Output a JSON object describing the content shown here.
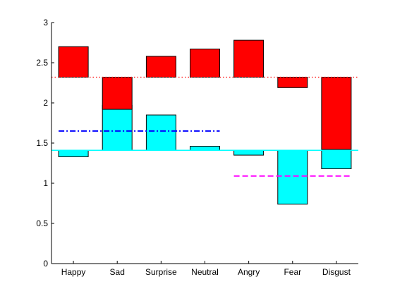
{
  "chart_data": {
    "type": "bar",
    "categories": [
      "Happy",
      "Sad",
      "Surprise",
      "Neutral",
      "Angry",
      "Fear",
      "Disgust"
    ],
    "ylim": [
      0,
      3
    ],
    "yticks": [
      "0",
      "0.5",
      "1",
      "1.5",
      "2",
      "2.5",
      "3"
    ],
    "grid": false,
    "series": [
      {
        "color": "#00ffff",
        "baseline": 1.41,
        "values": [
          1.33,
          1.97,
          1.85,
          1.46,
          1.35,
          0.74,
          1.18
        ]
      },
      {
        "color": "#ff0000",
        "baseline": 2.32,
        "values": [
          2.7,
          1.92,
          2.58,
          2.67,
          2.78,
          2.19,
          1.42
        ]
      }
    ],
    "reference_lines": [
      {
        "y": 2.32,
        "x_range": "full",
        "style": "dotted",
        "color": "#ff0000"
      },
      {
        "y": 1.41,
        "x_range": "full",
        "style": "solid",
        "color": "#00ffff"
      },
      {
        "y": 1.65,
        "x_range": [
          "Happy",
          "Neutral"
        ],
        "style": "dash-dot",
        "color": "#0000ff"
      },
      {
        "y": 1.09,
        "x_range": [
          "Angry",
          "Disgust"
        ],
        "style": "dashed",
        "color": "#ff00ff"
      }
    ]
  }
}
